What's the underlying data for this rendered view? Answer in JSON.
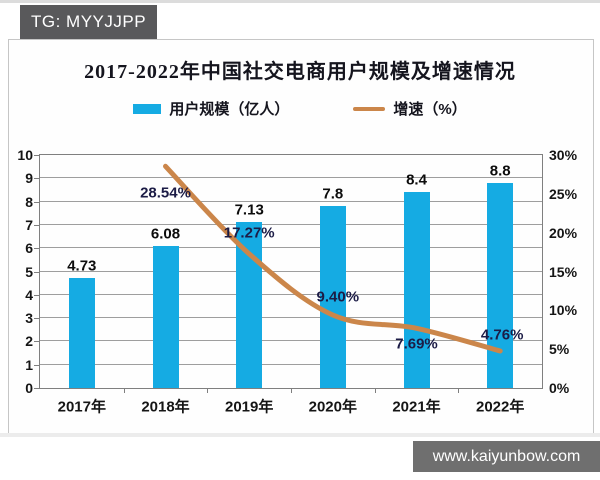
{
  "page": {
    "telegram_badge": "TG: MYYJJPP",
    "watermark": "www.kaiyunbow.com"
  },
  "chart": {
    "title": "2017-2022年中国社交电商用户规模及增速情况",
    "colors": {
      "bar": "#15abe3",
      "line": "#cb864a",
      "grid": "#9e9e9e",
      "plot_border": "#7f7f7f",
      "bar_label": "#0c0c0c",
      "line_label": "#1c1c46"
    }
  },
  "chart_data": {
    "type": "bar",
    "combo": "bar+line",
    "title": "2017-2022年中国社交电商用户规模及增速情况",
    "categories": [
      "2017年",
      "2018年",
      "2019年",
      "2020年",
      "2021年",
      "2022年"
    ],
    "series": [
      {
        "name": "用户规模（亿人）",
        "type": "bar",
        "axis": "left",
        "color": "#15abe3",
        "values": [
          4.73,
          6.08,
          7.13,
          7.8,
          8.4,
          8.8
        ],
        "data_labels": [
          "4.73",
          "6.08",
          "7.13",
          "7.8",
          "8.4",
          "8.8"
        ]
      },
      {
        "name": "增速（%）",
        "type": "line",
        "axis": "right",
        "color": "#cb864a",
        "values": [
          null,
          28.54,
          17.27,
          9.4,
          7.69,
          4.76
        ],
        "data_labels": [
          null,
          "28.54%",
          "17.27%",
          "9.40%",
          "7.69%",
          "4.76%"
        ]
      }
    ],
    "left_axis": {
      "min": 0,
      "max": 10,
      "step": 1,
      "ticks": [
        "0",
        "1",
        "2",
        "3",
        "4",
        "5",
        "6",
        "7",
        "8",
        "9",
        "10"
      ]
    },
    "right_axis": {
      "min": 0,
      "max": 30,
      "step": 5,
      "ticks": [
        "0%",
        "5%",
        "10%",
        "15%",
        "20%",
        "25%",
        "30%"
      ]
    },
    "grid": true,
    "legend_position": "top"
  }
}
